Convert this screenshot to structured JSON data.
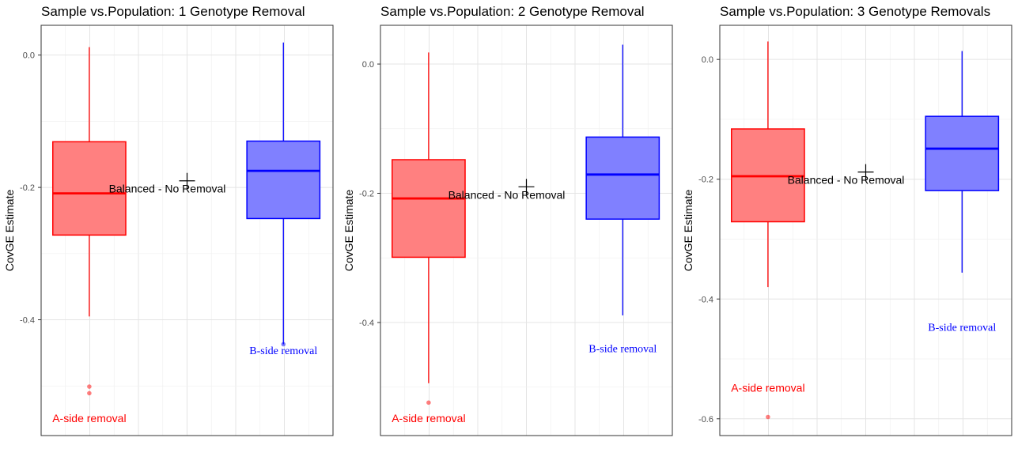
{
  "chart_data": [
    {
      "type": "boxplot",
      "title": "Sample vs.Population: 1 Genotype Removal",
      "ylabel": "CovGE Estimate",
      "xlabel": "",
      "ylim": [
        -0.575,
        0.045
      ],
      "yticks": [
        0.0,
        -0.2,
        -0.4
      ],
      "ytick_labels": [
        "0.0",
        "-0.2",
        "-0.4"
      ],
      "grid": true,
      "boxes": [
        {
          "side": "A",
          "color": "#ff0000",
          "fill": "#ff8080",
          "whisker_low": -0.395,
          "q1": -0.272,
          "median": -0.209,
          "q3": -0.131,
          "whisker_high": 0.012,
          "outliers": [
            -0.501,
            -0.511
          ]
        },
        {
          "side": "B",
          "color": "#0000ff",
          "fill": "#8080ff",
          "whisker_low": -0.437,
          "q1": -0.247,
          "median": -0.175,
          "q3": -0.13,
          "whisker_high": 0.019,
          "outliers": [
            -0.437
          ]
        }
      ],
      "reference": {
        "label": "Balanced - No Removal",
        "value": -0.19
      },
      "annotations": {
        "a_label": "A-side removal",
        "b_label": "B-side removal",
        "a_y": -0.55,
        "b_y": -0.45
      }
    },
    {
      "type": "boxplot",
      "title": "Sample vs.Population: 2 Genotype Removal",
      "ylabel": "CovGE Estimate",
      "xlabel": "",
      "ylim": [
        -0.575,
        0.06
      ],
      "yticks": [
        0.0,
        -0.2,
        -0.4
      ],
      "ytick_labels": [
        "0.0",
        "-0.2",
        "-0.4"
      ],
      "grid": true,
      "boxes": [
        {
          "side": "A",
          "color": "#ff0000",
          "fill": "#ff8080",
          "whisker_low": -0.494,
          "q1": -0.299,
          "median": -0.208,
          "q3": -0.148,
          "whisker_high": 0.018,
          "outliers": [
            -0.524
          ]
        },
        {
          "side": "B",
          "color": "#0000ff",
          "fill": "#8080ff",
          "whisker_low": -0.389,
          "q1": -0.24,
          "median": -0.171,
          "q3": -0.113,
          "whisker_high": 0.03,
          "outliers": []
        }
      ],
      "reference": {
        "label": "Balanced - No Removal",
        "value": -0.19
      },
      "annotations": {
        "a_label": "A-side removal",
        "b_label": "B-side removal",
        "a_y": -0.55,
        "b_y": -0.45
      }
    },
    {
      "type": "boxplot",
      "title": "Sample vs.Population: 3 Genotype Removals",
      "ylabel": "CovGE Estimate",
      "xlabel": "",
      "ylim": [
        -0.628,
        0.057
      ],
      "yticks": [
        0.0,
        -0.2,
        -0.4,
        -0.6
      ],
      "ytick_labels": [
        "0.0",
        "-0.2",
        "-0.4",
        "-0.6"
      ],
      "grid": true,
      "boxes": [
        {
          "side": "A",
          "color": "#ff0000",
          "fill": "#ff8080",
          "whisker_low": -0.38,
          "q1": -0.271,
          "median": -0.195,
          "q3": -0.116,
          "whisker_high": 0.03,
          "outliers": [
            -0.597
          ]
        },
        {
          "side": "B",
          "color": "#0000ff",
          "fill": "#8080ff",
          "whisker_low": -0.356,
          "q1": -0.219,
          "median": -0.149,
          "q3": -0.095,
          "whisker_high": 0.014,
          "outliers": []
        }
      ],
      "reference": {
        "label": "Balanced - No Removal",
        "value": -0.188
      },
      "annotations": {
        "a_label": "A-side removal",
        "b_label": "B-side removal",
        "a_y": -0.55,
        "b_y": -0.45
      }
    }
  ]
}
